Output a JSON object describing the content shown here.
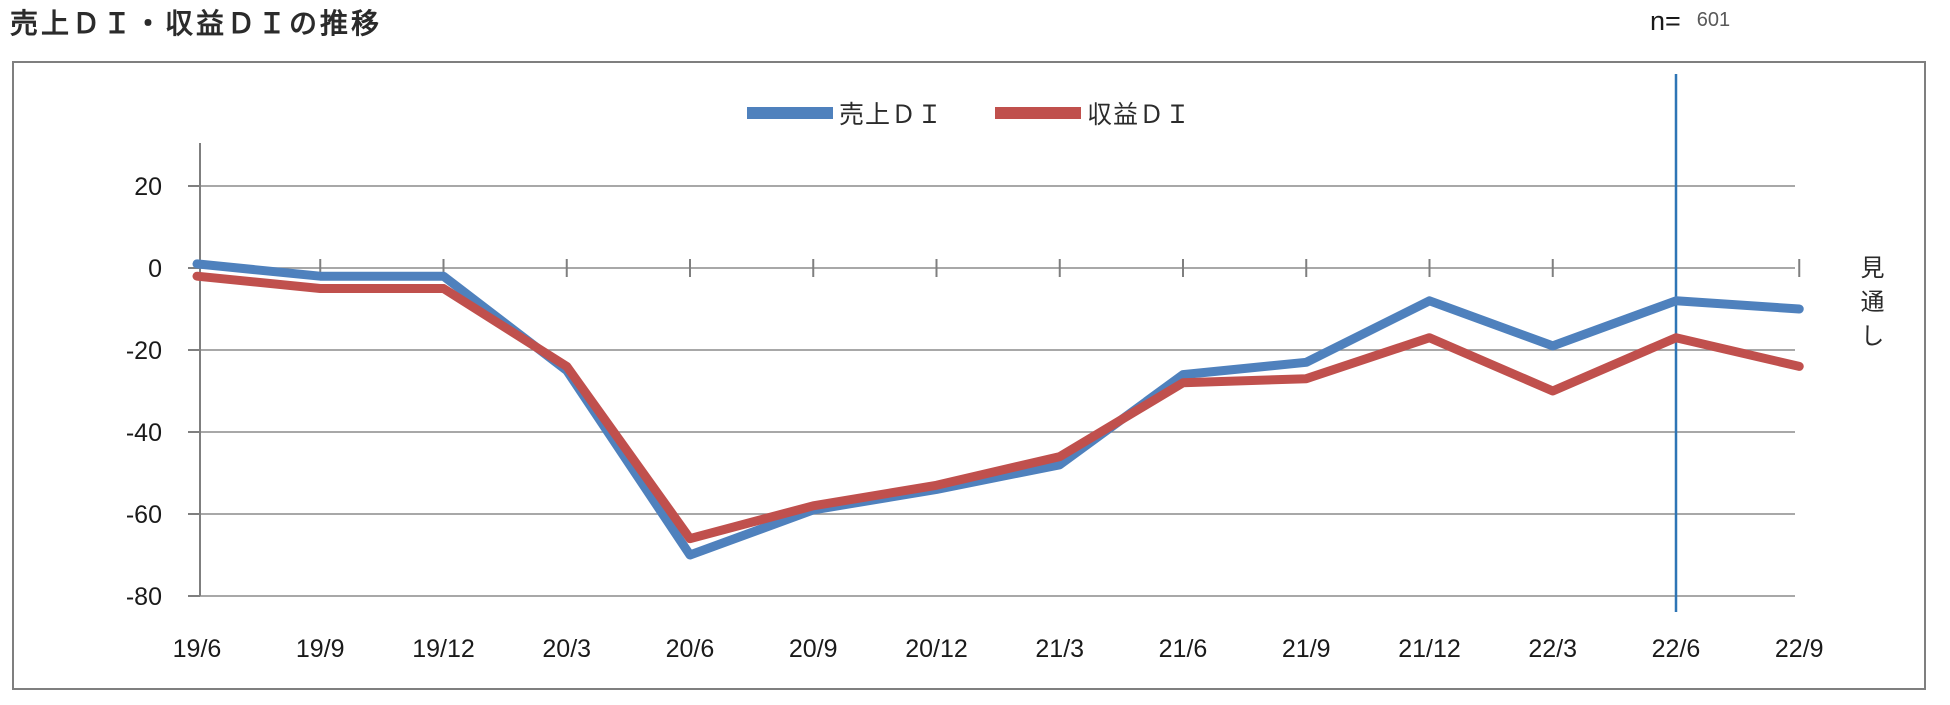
{
  "header": {
    "title": "売上ＤＩ・収益ＤＩの推移",
    "n_label": "n=",
    "n_value": "601"
  },
  "chart_data": {
    "type": "line",
    "title": "売上ＤＩ・収益ＤＩの推移",
    "sample_size": "n= 601",
    "categories": [
      "19/6",
      "19/9",
      "19/12",
      "20/3",
      "20/6",
      "20/9",
      "20/12",
      "21/3",
      "21/6",
      "21/9",
      "21/12",
      "22/3",
      "22/6",
      "22/9"
    ],
    "series": [
      {
        "name": "売上ＤＩ",
        "color": "#4f81bd",
        "values": [
          1,
          -2,
          -2,
          -25,
          -70,
          -59,
          -54,
          -48,
          -26,
          -23,
          -8,
          -19,
          -8,
          -10
        ]
      },
      {
        "name": "収益ＤＩ",
        "color": "#c0504d",
        "values": [
          -2,
          -5,
          -5,
          -24,
          -66,
          -58,
          -53,
          -46,
          -28,
          -27,
          -17,
          -30,
          -17,
          -24
        ]
      }
    ],
    "xlabel": "",
    "ylabel": "",
    "ylim": [
      -80,
      30
    ],
    "y_ticks": [
      20,
      0,
      -20,
      -40,
      -60,
      -80
    ],
    "grid": true,
    "legend_position": "top-center",
    "forecast_label": "見通し",
    "forecast_line_x": "22/6",
    "forecast_line_color": "#2e75b5",
    "gridline_color": "#8c8c8c",
    "axis_color": "#7f7f7f"
  }
}
